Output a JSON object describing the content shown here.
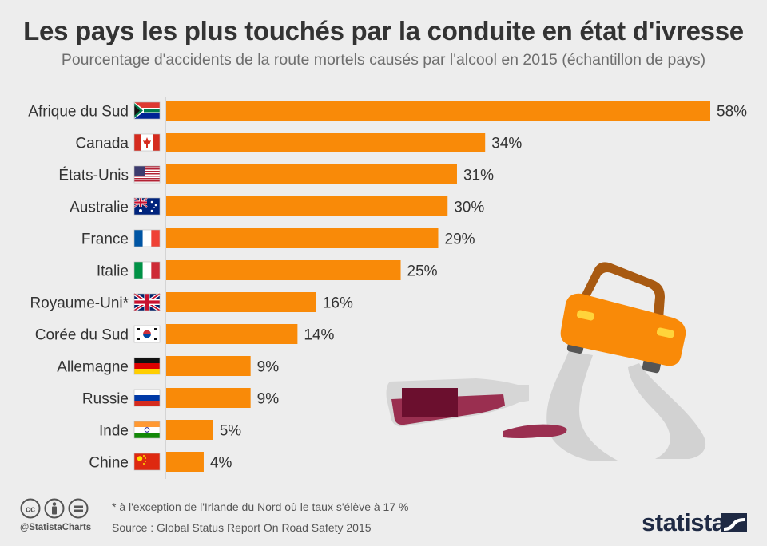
{
  "title": "Les pays les plus touchés par la conduite en état d'ivresse",
  "subtitle": "Pourcentage d'accidents de la route mortels causés par l'alcool en 2015 (échantillon de pays)",
  "chart_data": {
    "type": "bar",
    "orientation": "horizontal",
    "unit": "%",
    "categories": [
      "Afrique du Sud",
      "Canada",
      "États-Unis",
      "Australie",
      "France",
      "Italie",
      "Royaume-Uni*",
      "Corée du Sud",
      "Allemagne",
      "Russie",
      "Inde",
      "Chine"
    ],
    "values": [
      58,
      34,
      31,
      30,
      29,
      25,
      16,
      14,
      9,
      9,
      5,
      4
    ],
    "labels": [
      "58%",
      "34%",
      "31%",
      "30%",
      "29%",
      "25%",
      "16%",
      "14%",
      "9%",
      "9%",
      "5%",
      "4%"
    ],
    "flags": [
      "za",
      "ca",
      "us",
      "au",
      "fr",
      "it",
      "gb",
      "kr",
      "de",
      "ru",
      "in",
      "cn"
    ],
    "xlim": [
      0,
      58
    ],
    "bar_color": "#f98a08"
  },
  "footer": {
    "note": "* à l'exception de l'Irlande du Nord où le taux s'élève à 17 %",
    "source": "Source : Global Status Report On Road Safety 2015",
    "handle": "@StatistaCharts",
    "brand": "statista"
  },
  "icons": [
    "cc-icon",
    "attribution-icon",
    "no-derivatives-icon",
    "car-illustration",
    "bottle-illustration",
    "statista-logo-icon"
  ]
}
